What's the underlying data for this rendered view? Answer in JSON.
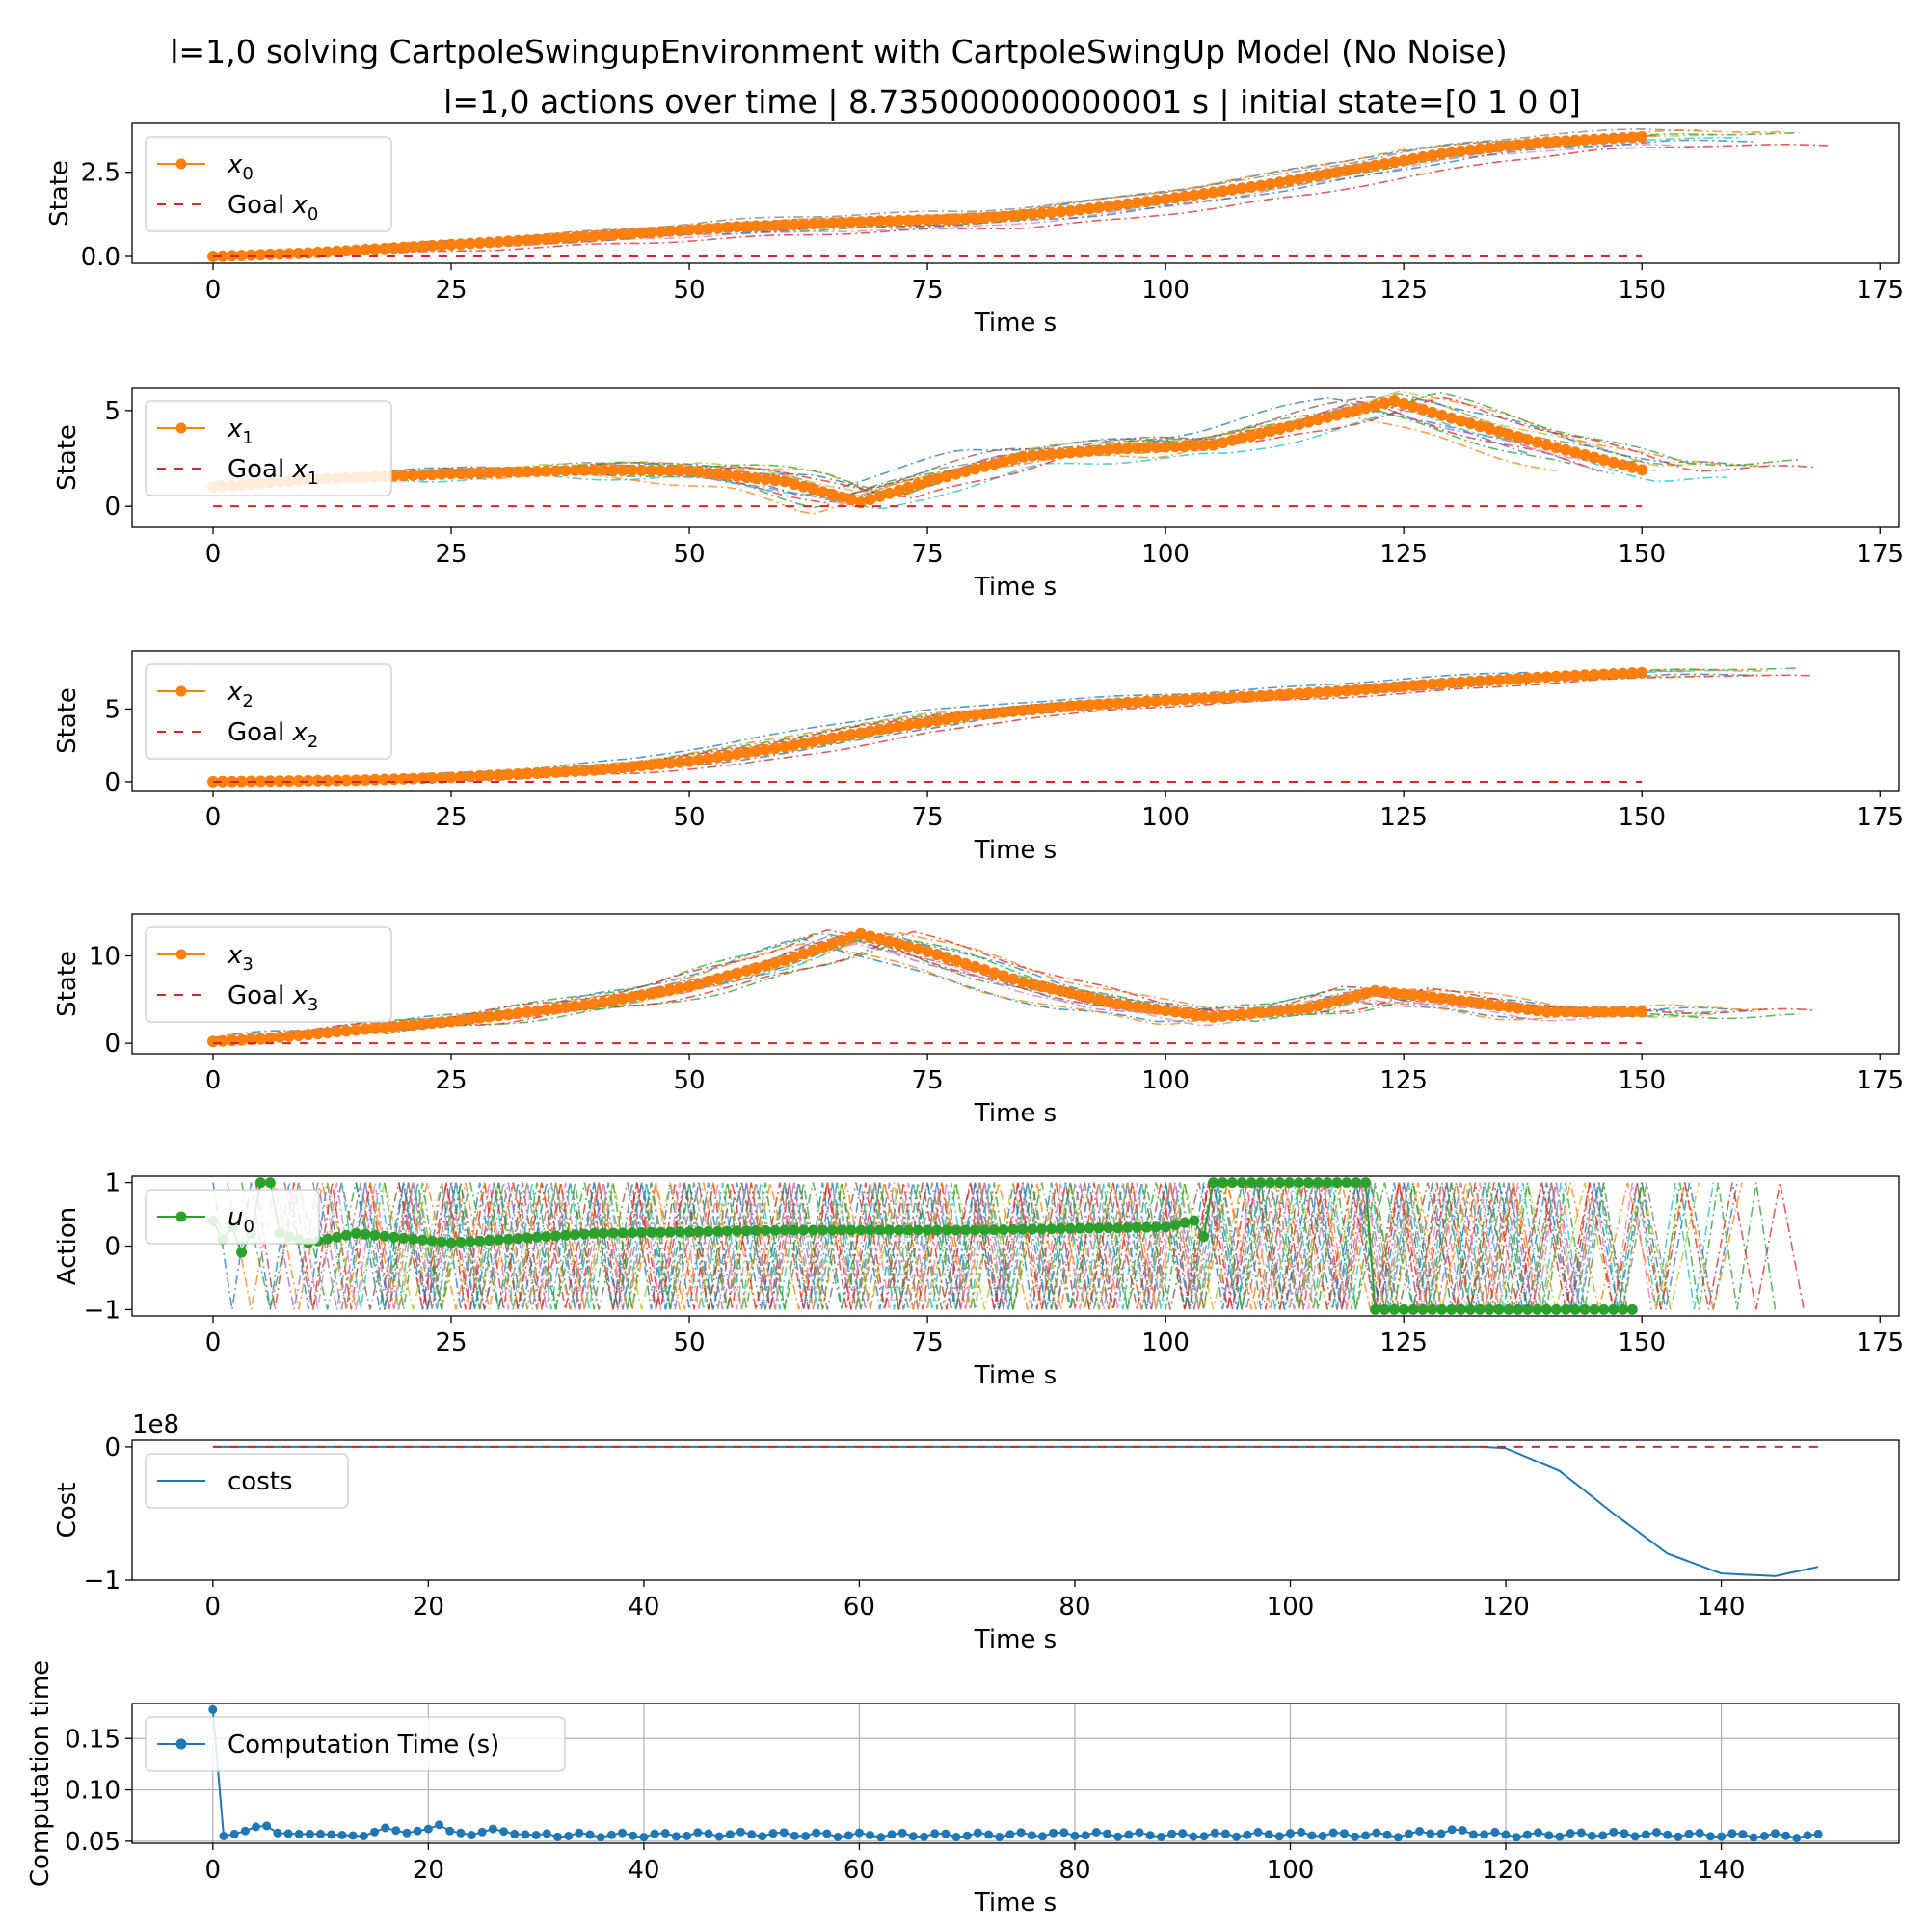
{
  "figure": {
    "suptitle": "l=1,0 solving CartpoleSwingupEnvironment with CartpoleSwingUp Model (No Noise)",
    "subtitle": "l=1,0 actions over time | 8.735000000000001 s | initial state=[0 1 0 0]"
  },
  "colors": {
    "orange": "#ff7f0e",
    "green": "#2ca02c",
    "blue": "#1f77b4",
    "red": "#d62728",
    "palette": [
      "#1f77b4",
      "#ff7f0e",
      "#2ca02c",
      "#d62728",
      "#9467bd",
      "#8c564b",
      "#e377c2",
      "#7f7f7f",
      "#bcbd22",
      "#17becf"
    ]
  },
  "chart_data": [
    {
      "type": "line",
      "xlabel": "Time s",
      "ylabel": "State",
      "xlim": [
        -8.5,
        177
      ],
      "ylim": [
        -0.2,
        3.95
      ],
      "xticks": [
        0,
        25,
        50,
        75,
        100,
        125,
        150,
        175
      ],
      "yticks": [
        0.0,
        2.5
      ],
      "ytick_labels": [
        "0.0",
        "2.5"
      ],
      "legend": [
        "x_0",
        "Goal x_0"
      ],
      "legend_sub": [
        "0",
        "0"
      ],
      "legend_placement": "upper-left",
      "grid": false,
      "series": [
        {
          "name": "x_0",
          "style": "marker-line",
          "x": [
            0,
            10,
            25,
            40,
            55,
            70,
            80,
            90,
            100,
            110,
            120,
            130,
            140,
            150
          ],
          "y": [
            0.0,
            0.1,
            0.35,
            0.6,
            0.88,
            1.05,
            1.12,
            1.35,
            1.7,
            2.1,
            2.6,
            3.1,
            3.4,
            3.55
          ]
        },
        {
          "name": "Goal x_0",
          "style": "goal",
          "x": [
            0,
            150
          ],
          "y": [
            0.0,
            0.0
          ]
        }
      ],
      "ghosts": {
        "from": 0,
        "to": 170,
        "jitter": 0.1,
        "spread": 0.6
      }
    },
    {
      "type": "line",
      "xlabel": "Time s",
      "ylabel": "State",
      "xlim": [
        -8.5,
        177
      ],
      "ylim": [
        -1.1,
        6.2
      ],
      "xticks": [
        0,
        25,
        50,
        75,
        100,
        125,
        150,
        175
      ],
      "yticks": [
        0,
        5
      ],
      "ytick_labels": [
        "0",
        "5"
      ],
      "legend": [
        "x_1",
        "Goal x_1"
      ],
      "legend_sub": [
        "1",
        "1"
      ],
      "legend_placement": "upper-left",
      "grid": false,
      "series": [
        {
          "name": "x_1",
          "style": "marker-line",
          "x": [
            0,
            10,
            25,
            40,
            50,
            60,
            68,
            75,
            85,
            95,
            105,
            115,
            124,
            130,
            140,
            150
          ],
          "y": [
            1.0,
            1.4,
            1.7,
            1.9,
            1.85,
            1.3,
            0.2,
            1.3,
            2.6,
            3.0,
            3.2,
            4.4,
            5.5,
            4.6,
            3.2,
            1.9
          ]
        },
        {
          "name": "Goal x_1",
          "style": "goal",
          "x": [
            0,
            150
          ],
          "y": [
            0.0,
            0.0
          ]
        }
      ],
      "ghosts": {
        "from": 0,
        "to": 169,
        "jitter": 0.5,
        "spread": 1.2
      }
    },
    {
      "type": "line",
      "xlabel": "Time s",
      "ylabel": "State",
      "xlim": [
        -8.5,
        177
      ],
      "ylim": [
        -0.6,
        9.0
      ],
      "xticks": [
        0,
        25,
        50,
        75,
        100,
        125,
        150,
        175
      ],
      "yticks": [
        0,
        5
      ],
      "ytick_labels": [
        "0",
        "5"
      ],
      "legend": [
        "x_2",
        "Goal x_2"
      ],
      "legend_sub": [
        "2",
        "2"
      ],
      "legend_placement": "upper-left",
      "grid": false,
      "series": [
        {
          "name": "x_2",
          "style": "marker-line",
          "x": [
            0,
            15,
            25,
            40,
            50,
            60,
            70,
            80,
            90,
            100,
            110,
            120,
            130,
            140,
            150
          ],
          "y": [
            0.0,
            0.1,
            0.3,
            0.8,
            1.4,
            2.4,
            3.6,
            4.6,
            5.2,
            5.6,
            5.9,
            6.3,
            6.8,
            7.2,
            7.5
          ]
        },
        {
          "name": "Goal x_2",
          "style": "goal",
          "x": [
            0,
            150
          ],
          "y": [
            0.0,
            0.0
          ]
        }
      ],
      "ghosts": {
        "from": 0,
        "to": 169,
        "jitter": 0.15,
        "spread": 0.5
      }
    },
    {
      "type": "line",
      "xlabel": "Time s",
      "ylabel": "State",
      "xlim": [
        -8.5,
        177
      ],
      "ylim": [
        -1.2,
        14.8
      ],
      "xticks": [
        0,
        25,
        50,
        75,
        100,
        125,
        150,
        175
      ],
      "yticks": [
        0,
        10
      ],
      "ytick_labels": [
        "0",
        "10"
      ],
      "legend": [
        "x_3",
        "Goal x_3"
      ],
      "legend_sub": [
        "3",
        "3"
      ],
      "legend_placement": "upper-left",
      "grid": false,
      "series": [
        {
          "name": "x_3",
          "style": "marker-line",
          "x": [
            0,
            5,
            10,
            25,
            40,
            50,
            60,
            68,
            75,
            85,
            95,
            105,
            115,
            122,
            130,
            140,
            150
          ],
          "y": [
            0.2,
            0.5,
            1.0,
            2.5,
            4.5,
            6.5,
            9.5,
            12.5,
            10.5,
            7.0,
            4.5,
            3.0,
            4.0,
            6.0,
            5.0,
            3.6,
            3.6
          ]
        },
        {
          "name": "Goal x_3",
          "style": "goal",
          "x": [
            0,
            150
          ],
          "y": [
            0.0,
            0.0
          ]
        }
      ],
      "ghosts": {
        "from": 0,
        "to": 169,
        "jitter": 0.9,
        "spread": 1.5
      }
    },
    {
      "type": "line",
      "xlabel": "Time s",
      "ylabel": "Action",
      "xlim": [
        -8.5,
        177
      ],
      "ylim": [
        -1.1,
        1.1
      ],
      "xticks": [
        0,
        25,
        50,
        75,
        100,
        125,
        150,
        175
      ],
      "yticks": [
        -1,
        0,
        1
      ],
      "ytick_labels": [
        "−1",
        "0",
        "1"
      ],
      "legend": [
        "u_0"
      ],
      "legend_sub": [
        "0"
      ],
      "legend_placement": "upper-left",
      "grid": false,
      "series": [
        {
          "name": "u_0",
          "style": "marker-line-green",
          "x": [
            0,
            1,
            2,
            3,
            4,
            5,
            6,
            7,
            10,
            15,
            25,
            40,
            60,
            80,
            100,
            103,
            104,
            105,
            110,
            121,
            122,
            130,
            149
          ],
          "y": [
            0.4,
            0.1,
            0.3,
            -0.1,
            0.2,
            1.0,
            1.0,
            0.2,
            0.05,
            0.2,
            0.05,
            0.2,
            0.25,
            0.25,
            0.3,
            0.4,
            0.15,
            1.0,
            1.0,
            1.0,
            -1.0,
            -1.0,
            -1.0
          ]
        }
      ],
      "ghosts": {
        "from": 0,
        "to": 168,
        "jitter": 0,
        "spread": 0,
        "zigzag": true
      }
    },
    {
      "type": "line",
      "xlabel": "Time s",
      "ylabel": "Cost",
      "offset_text": "1e8",
      "xlim": [
        -7.5,
        156.5
      ],
      "ylim": [
        -1.0,
        0.05
      ],
      "xticks": [
        0,
        20,
        40,
        60,
        80,
        100,
        120,
        140
      ],
      "yticks": [
        -1,
        0
      ],
      "ytick_labels": [
        "−1",
        "0"
      ],
      "legend": [
        "costs"
      ],
      "legend_sub": [
        ""
      ],
      "legend_placement": "upper-left",
      "grid": false,
      "series": [
        {
          "name": "costs",
          "style": "plain-blue",
          "x": [
            0,
            118,
            120,
            125,
            130,
            135,
            140,
            145,
            149
          ],
          "y": [
            0.0,
            0.0,
            -0.01,
            -0.18,
            -0.5,
            -0.8,
            -0.95,
            -0.97,
            -0.9
          ]
        },
        {
          "name": "goal",
          "style": "goal",
          "x": [
            0,
            149
          ],
          "y": [
            0.0,
            0.0
          ]
        }
      ],
      "ghosts": null
    },
    {
      "type": "line",
      "xlabel": "Time s",
      "ylabel": "Computation time",
      "xlim": [
        -7.5,
        156.5
      ],
      "ylim": [
        0.048,
        0.184
      ],
      "xticks": [
        0,
        20,
        40,
        60,
        80,
        100,
        120,
        140
      ],
      "yticks": [
        0.05,
        0.1,
        0.15
      ],
      "ytick_labels": [
        "0.05",
        "0.10",
        "0.15"
      ],
      "legend": [
        "Computation Time (s)"
      ],
      "legend_sub": [
        ""
      ],
      "legend_placement": "upper-left",
      "grid": true,
      "series": [
        {
          "name": "Computation Time (s)",
          "style": "marker-line-blue",
          "x": [
            0,
            1,
            2,
            3,
            4,
            5,
            6,
            8,
            10,
            12,
            14,
            16,
            18,
            20,
            21,
            22,
            24,
            26,
            28,
            30,
            40,
            50,
            60,
            70,
            80,
            90,
            100,
            110,
            115,
            120,
            130,
            140,
            149
          ],
          "y": [
            0.178,
            0.055,
            0.057,
            0.06,
            0.064,
            0.065,
            0.058,
            0.057,
            0.057,
            0.056,
            0.055,
            0.063,
            0.058,
            0.062,
            0.066,
            0.06,
            0.056,
            0.062,
            0.057,
            0.056,
            0.056,
            0.057,
            0.056,
            0.056,
            0.057,
            0.056,
            0.057,
            0.056,
            0.06,
            0.056,
            0.057,
            0.056,
            0.055
          ]
        }
      ],
      "ghosts": null
    }
  ]
}
